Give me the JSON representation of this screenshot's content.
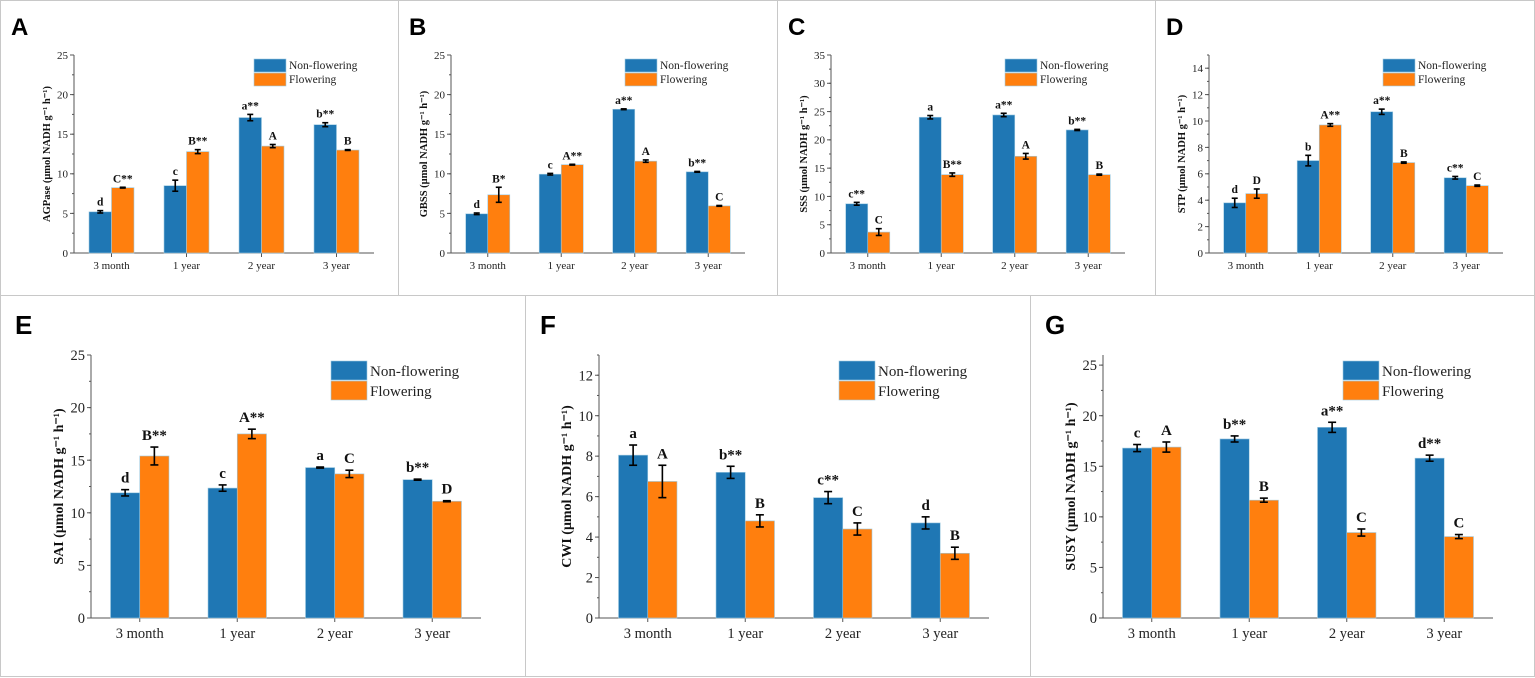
{
  "figure": {
    "series_colors": {
      "Non-flowering": "#1f77b4",
      "Flowering": "#ff7f0e"
    },
    "legend": [
      "Non-flowering",
      "Flowering"
    ],
    "legend_placement": "top-right"
  },
  "chart_data": [
    {
      "id": "A",
      "type": "bar",
      "title": "",
      "ylabel": "AGPase (μmol NADH g⁻¹ h⁻¹)",
      "xlabel": "",
      "categories": [
        "3 month",
        "1 year",
        "2 year",
        "3 year"
      ],
      "ylim": [
        0,
        25
      ],
      "yticks": [
        0,
        5,
        10,
        15,
        20,
        25
      ],
      "yminor": 2.5,
      "series": [
        {
          "name": "Non-flowering",
          "values": [
            5.2,
            8.5,
            17.1,
            16.2
          ],
          "errors": [
            0.15,
            0.7,
            0.4,
            0.25
          ],
          "labels": [
            "d",
            "c",
            "a**",
            "b**"
          ]
        },
        {
          "name": "Flowering",
          "values": [
            8.25,
            12.8,
            13.5,
            13.0
          ],
          "errors": [
            0.05,
            0.25,
            0.2,
            0.05
          ],
          "labels": [
            "C**",
            "B**",
            "A",
            "B"
          ]
        }
      ]
    },
    {
      "id": "B",
      "type": "bar",
      "title": "",
      "ylabel": "GBSS (μmol NADH g⁻¹ h⁻¹)",
      "xlabel": "",
      "categories": [
        "3 month",
        "1 year",
        "2 year",
        "3 year"
      ],
      "ylim": [
        0,
        25
      ],
      "yticks": [
        0,
        5,
        10,
        15,
        20,
        25
      ],
      "yminor": 2.5,
      "series": [
        {
          "name": "Non-flowering",
          "values": [
            4.95,
            9.95,
            18.15,
            10.25
          ],
          "errors": [
            0.1,
            0.1,
            0.05,
            0.05
          ],
          "labels": [
            "d",
            "c",
            "a**",
            "b**"
          ]
        },
        {
          "name": "Flowering",
          "values": [
            7.35,
            11.15,
            11.6,
            5.95
          ],
          "errors": [
            0.95,
            0.05,
            0.15,
            0.05
          ],
          "labels": [
            "B*",
            "A**",
            "A",
            "C"
          ]
        }
      ]
    },
    {
      "id": "C",
      "type": "bar",
      "title": "",
      "ylabel": "SSS (μmol NADH g⁻¹ h⁻¹)",
      "xlabel": "",
      "categories": [
        "3 month",
        "1 year",
        "2 year",
        "3 year"
      ],
      "ylim": [
        0,
        35
      ],
      "yticks": [
        0,
        5,
        10,
        15,
        20,
        25,
        30,
        35
      ],
      "yminor": 2.5,
      "series": [
        {
          "name": "Non-flowering",
          "values": [
            8.7,
            24.0,
            24.4,
            21.75
          ],
          "errors": [
            0.25,
            0.3,
            0.3,
            0.1
          ],
          "labels": [
            "c**",
            "a",
            "a**",
            "b**"
          ]
        },
        {
          "name": "Flowering",
          "values": [
            3.7,
            13.85,
            17.1,
            13.85
          ],
          "errors": [
            0.6,
            0.3,
            0.5,
            0.1
          ],
          "labels": [
            "C",
            "B**",
            "A",
            "B"
          ]
        }
      ]
    },
    {
      "id": "D",
      "type": "bar",
      "title": "",
      "ylabel": "STP (μmol NADH g⁻¹ h⁻¹)",
      "xlabel": "",
      "categories": [
        "3 month",
        "1 year",
        "2 year",
        "3 year"
      ],
      "ylim": [
        0,
        15
      ],
      "yticks": [
        0,
        2,
        4,
        6,
        8,
        10,
        12,
        14
      ],
      "yminor": 1,
      "series": [
        {
          "name": "Non-flowering",
          "values": [
            3.8,
            7.0,
            10.7,
            5.7
          ],
          "errors": [
            0.35,
            0.4,
            0.2,
            0.1
          ],
          "labels": [
            "d",
            "b",
            "a**",
            "c**"
          ]
        },
        {
          "name": "Flowering",
          "values": [
            4.5,
            9.7,
            6.85,
            5.1
          ],
          "errors": [
            0.35,
            0.1,
            0.05,
            0.05
          ],
          "labels": [
            "D",
            "A**",
            "B",
            "C"
          ]
        }
      ]
    },
    {
      "id": "E",
      "type": "bar",
      "title": "",
      "ylabel": "SAI (μmol NADH g⁻¹ h⁻¹)",
      "xlabel": "",
      "categories": [
        "3 month",
        "1 year",
        "2 year",
        "3 year"
      ],
      "ylim": [
        0,
        25
      ],
      "yticks": [
        0,
        5,
        10,
        15,
        20,
        25
      ],
      "yminor": 2.5,
      "series": [
        {
          "name": "Non-flowering",
          "values": [
            11.9,
            12.35,
            14.3,
            13.15
          ],
          "errors": [
            0.3,
            0.3,
            0.05,
            0.05
          ],
          "labels": [
            "d",
            "c",
            "a",
            "b**"
          ]
        },
        {
          "name": "Flowering",
          "values": [
            15.4,
            17.5,
            13.7,
            11.1
          ],
          "errors": [
            0.85,
            0.45,
            0.35,
            0.05
          ],
          "labels": [
            "B**",
            "A**",
            "C",
            "D"
          ]
        }
      ]
    },
    {
      "id": "F",
      "type": "bar",
      "title": "",
      "ylabel": "CWI (μmol NADH g⁻¹ h⁻¹)",
      "xlabel": "",
      "categories": [
        "3 month",
        "1 year",
        "2 year",
        "3 year"
      ],
      "ylim": [
        0,
        13
      ],
      "yticks": [
        0,
        2,
        4,
        6,
        8,
        10,
        12
      ],
      "yminor": 1,
      "series": [
        {
          "name": "Non-flowering",
          "values": [
            8.05,
            7.2,
            5.95,
            4.7
          ],
          "errors": [
            0.5,
            0.3,
            0.3,
            0.3
          ],
          "labels": [
            "a",
            "b**",
            "c**",
            "d"
          ]
        },
        {
          "name": "Flowering",
          "values": [
            6.75,
            4.8,
            4.4,
            3.2
          ],
          "errors": [
            0.8,
            0.3,
            0.3,
            0.3
          ],
          "labels": [
            "A",
            "B",
            "C",
            "B"
          ]
        }
      ]
    },
    {
      "id": "G",
      "type": "bar",
      "title": "",
      "ylabel": "SUSY (μmol NADH g⁻¹ h⁻¹)",
      "xlabel": "",
      "categories": [
        "3 month",
        "1 year",
        "2 year",
        "3 year"
      ],
      "ylim": [
        0,
        26
      ],
      "yticks": [
        0,
        5,
        10,
        15,
        20,
        25
      ],
      "yminor": 2.5,
      "series": [
        {
          "name": "Non-flowering",
          "values": [
            16.8,
            17.7,
            18.85,
            15.8
          ],
          "errors": [
            0.35,
            0.3,
            0.5,
            0.3
          ],
          "labels": [
            "c",
            "b**",
            "a**",
            "d**"
          ]
        },
        {
          "name": "Flowering",
          "values": [
            16.9,
            11.65,
            8.45,
            8.05
          ],
          "errors": [
            0.5,
            0.2,
            0.35,
            0.2
          ],
          "labels": [
            "A",
            "B",
            "C",
            "C"
          ]
        }
      ]
    }
  ]
}
